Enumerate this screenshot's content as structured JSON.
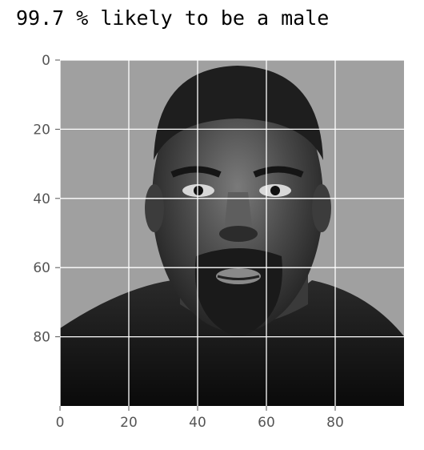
{
  "output": {
    "caption": "99.7 % likely to be a male"
  },
  "chart_data": {
    "type": "image",
    "title": "",
    "xlabel": "",
    "ylabel": "",
    "xlim": [
      0,
      100
    ],
    "ylim": [
      100,
      0
    ],
    "x_ticks": [
      0,
      20,
      40,
      60,
      80
    ],
    "y_ticks": [
      0,
      20,
      40,
      60,
      80
    ],
    "x_tick_labels": [
      "0",
      "20",
      "40",
      "60",
      "80"
    ],
    "y_tick_labels": [
      "0",
      "20",
      "40",
      "60",
      "80"
    ],
    "grid": true,
    "colormap": "grayscale",
    "image_content": "grayscale portrait photo of a man's face",
    "colors": {
      "background": "#a0a0a0",
      "grid": "#ffffff",
      "tick": "#555555"
    }
  }
}
